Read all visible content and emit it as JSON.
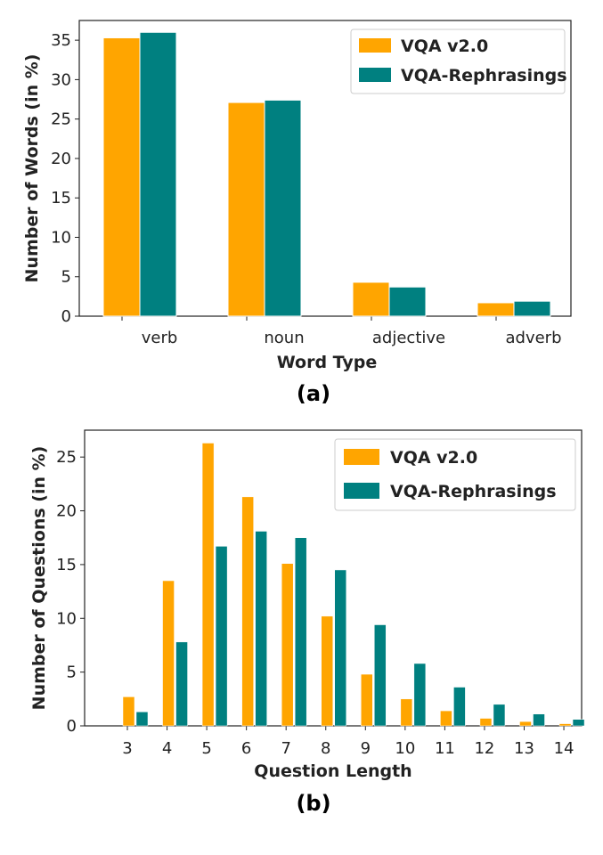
{
  "colors": {
    "vqa": "#FFA500",
    "rephrase": "#008080"
  },
  "chart_data": [
    {
      "type": "bar",
      "panel_label": "(a)",
      "xlabel": "Word Type",
      "ylabel": "Number of Words (in %)",
      "ylim": [
        0,
        37.5
      ],
      "yticks": [
        0,
        5,
        10,
        15,
        20,
        25,
        30,
        35
      ],
      "categories": [
        "verb",
        "noun",
        "adjective",
        "adverb"
      ],
      "series": [
        {
          "name": "VQA v2.0",
          "values": [
            35.3,
            27.1,
            4.3,
            1.7
          ]
        },
        {
          "name": "VQA-Rephrasings",
          "values": [
            36.0,
            27.4,
            3.7,
            1.9
          ]
        }
      ],
      "legend": "top-right",
      "grid": false
    },
    {
      "type": "bar",
      "panel_label": "(b)",
      "xlabel": "Question Length",
      "ylabel": "Number of Questions (in %)",
      "ylim": [
        0,
        27.5
      ],
      "yticks": [
        0,
        5,
        10,
        15,
        20,
        25
      ],
      "categories": [
        "3",
        "4",
        "5",
        "6",
        "7",
        "8",
        "9",
        "10",
        "11",
        "12",
        "13",
        "14"
      ],
      "series": [
        {
          "name": "VQA v2.0",
          "values": [
            2.7,
            13.5,
            26.3,
            21.3,
            15.1,
            10.2,
            4.8,
            2.5,
            1.4,
            0.7,
            0.4,
            0.2
          ]
        },
        {
          "name": "VQA-Rephrasings",
          "values": [
            1.3,
            7.8,
            16.7,
            18.1,
            17.5,
            14.5,
            9.4,
            5.8,
            3.6,
            2.0,
            1.1,
            0.6
          ]
        }
      ],
      "legend": "top-right",
      "grid": false
    }
  ]
}
